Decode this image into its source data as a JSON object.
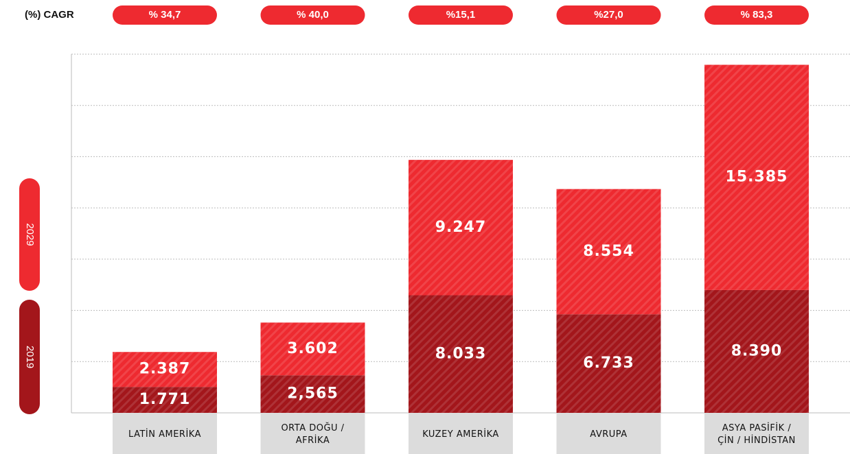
{
  "chart_data": {
    "type": "stacked_bar",
    "cagr": {
      "title": "(%) CAGR",
      "values": [
        34.7,
        40.0,
        15.1,
        27.0,
        83.3
      ],
      "value_labels": [
        "% 34,7",
        "% 40,0",
        "%15,1",
        "%27,0",
        "% 83,3"
      ],
      "color": "#ee2a30"
    },
    "categories": [
      [
        "LATİN AMERİKA"
      ],
      [
        "ORTA DOĞU /",
        "AFRİKA"
      ],
      [
        "KUZEY AMERİKA"
      ],
      [
        "AVRUPA"
      ],
      [
        "ASYA PASİFİK /",
        "ÇİN / HİNDİSTAN"
      ]
    ],
    "series": [
      {
        "name": "2019",
        "color": "#a3161b",
        "values": [
          1771,
          2565,
          8033,
          6733,
          8390
        ],
        "value_labels": [
          "1.771",
          "2,565",
          "8.033",
          "6.733",
          "8.390"
        ]
      },
      {
        "name": "2029",
        "color": "#ee2a30",
        "values": [
          2387,
          3602,
          9247,
          8554,
          15385
        ],
        "value_labels": [
          "2.387",
          "3.602",
          "9.247",
          "8.554",
          "15.385"
        ]
      }
    ],
    "ylim": [
      0,
      24500
    ],
    "yticks": [
      3500,
      7000,
      10500,
      14000,
      17500,
      21000,
      24500
    ],
    "grid": true
  }
}
